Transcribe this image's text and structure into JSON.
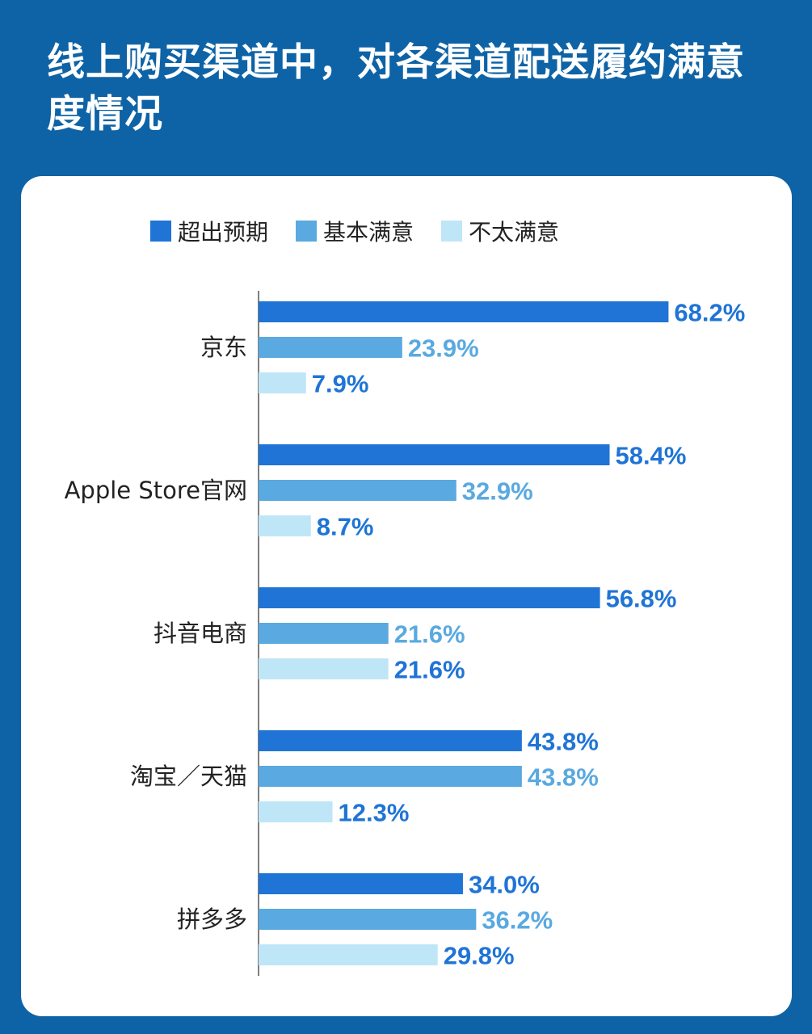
{
  "title": "线上购买渠道中，对各渠道配送履约满意度情况",
  "legend": {
    "items": [
      {
        "label": "超出预期",
        "color": "#1f74d6"
      },
      {
        "label": "基本满意",
        "color": "#5aa9e0"
      },
      {
        "label": "不太满意",
        "color": "#bfe6f7"
      }
    ]
  },
  "chart_data": {
    "type": "bar",
    "orientation": "horizontal",
    "categories": [
      "京东",
      "Apple Store官网",
      "抖音电商",
      "淘宝／天猫",
      "拼多多"
    ],
    "series": [
      {
        "name": "超出预期",
        "color": "#1f74d6",
        "label_color": "#1f74d6",
        "values": [
          68.2,
          58.4,
          56.8,
          43.8,
          34.0
        ],
        "labels": [
          "68.2%",
          "58.4%",
          "56.8%",
          "43.8%",
          "34.0%"
        ]
      },
      {
        "name": "基本满意",
        "color": "#5aa9e0",
        "label_color": "#5aa9e0",
        "values": [
          23.9,
          32.9,
          21.6,
          43.8,
          36.2
        ],
        "labels": [
          "23.9%",
          "32.9%",
          "21.6%",
          "43.8%",
          "36.2%"
        ]
      },
      {
        "name": "不太满意",
        "color": "#bfe6f7",
        "label_color": "#1f74d6",
        "values": [
          7.9,
          8.7,
          21.6,
          12.3,
          29.8
        ],
        "labels": [
          "7.9%",
          "8.7%",
          "21.6%",
          "12.3%",
          "29.8%"
        ]
      }
    ],
    "unit": "%",
    "xlim": [
      0,
      100
    ],
    "grid": false,
    "legend_position": "top"
  }
}
